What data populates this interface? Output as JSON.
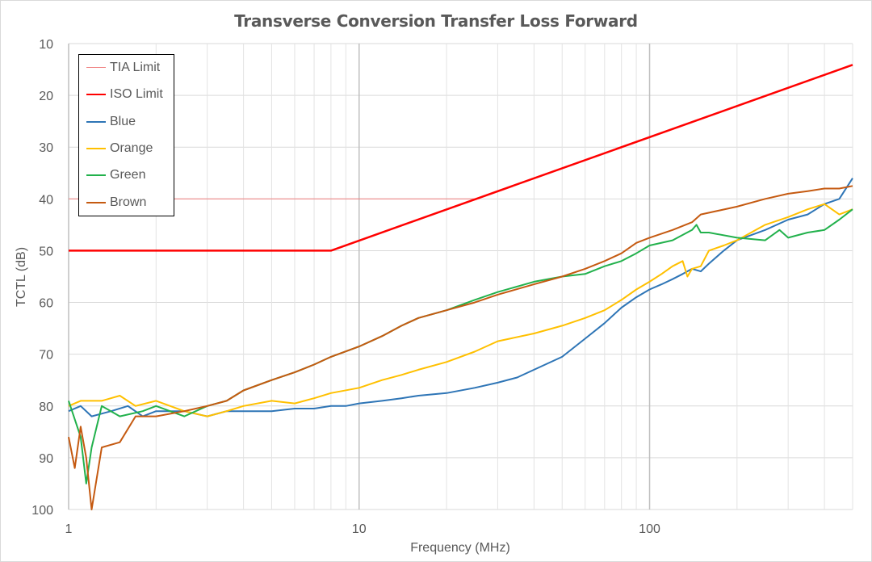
{
  "chart_data": {
    "type": "line",
    "title": "Transverse Conversion Transfer Loss Forward",
    "xlabel": "Frequency (MHz)",
    "ylabel": "TCTL (dB)",
    "xscale": "log",
    "xlim": [
      1,
      500
    ],
    "ylim": [
      10,
      100
    ],
    "y_inverted": true,
    "x_ticks": [
      1,
      10,
      100
    ],
    "x_tick_labels": [
      "1",
      "10",
      "100"
    ],
    "y_ticks": [
      10,
      20,
      30,
      40,
      50,
      60,
      70,
      80,
      90,
      100
    ],
    "y_tick_labels": [
      "10",
      "20",
      "30",
      "40",
      "50",
      "60",
      "70",
      "80",
      "90",
      "100"
    ],
    "grid": true,
    "legend_position": "top-left",
    "series": [
      {
        "name": "TIA Limit",
        "color": "#f08080",
        "width": 1,
        "x": [
          1,
          25
        ],
        "y": [
          40,
          40
        ]
      },
      {
        "name": "ISO Limit",
        "color": "#ff0000",
        "width": 2.5,
        "x": [
          1,
          8,
          500
        ],
        "y": [
          50,
          50,
          14.1
        ]
      },
      {
        "name": "Blue",
        "color": "#2e75b6",
        "width": 2,
        "x": [
          1,
          1.1,
          1.2,
          1.4,
          1.6,
          1.8,
          2,
          2.5,
          3,
          3.5,
          4,
          5,
          6,
          7,
          8,
          9,
          10,
          12,
          14,
          16,
          20,
          25,
          30,
          35,
          40,
          50,
          60,
          70,
          80,
          90,
          100,
          110,
          120,
          130,
          140,
          150,
          160,
          180,
          200,
          250,
          300,
          350,
          400,
          450,
          500
        ],
        "y": [
          81,
          80,
          82,
          81,
          80,
          82,
          81,
          81,
          82,
          81,
          81,
          81,
          80.5,
          80.5,
          80,
          80,
          79.5,
          79,
          78.5,
          78,
          77.5,
          76.5,
          75.5,
          74.5,
          73,
          70.5,
          67,
          64,
          61,
          59,
          57.5,
          56.5,
          55.5,
          54.5,
          53.5,
          54,
          52.5,
          50,
          48,
          46,
          44,
          43,
          41,
          40,
          36
        ]
      },
      {
        "name": "Orange",
        "color": "#ffc000",
        "width": 2,
        "x": [
          1,
          1.1,
          1.3,
          1.5,
          1.7,
          2,
          2.5,
          3,
          3.5,
          4,
          5,
          6,
          7,
          8,
          10,
          12,
          14,
          16,
          20,
          25,
          30,
          40,
          50,
          60,
          70,
          80,
          90,
          100,
          110,
          120,
          130,
          135,
          140,
          150,
          160,
          180,
          200,
          250,
          300,
          350,
          400,
          450,
          500
        ],
        "y": [
          80,
          79,
          79,
          78,
          80,
          79,
          81,
          82,
          81,
          80,
          79,
          79.5,
          78.5,
          77.5,
          76.5,
          75,
          74,
          73,
          71.5,
          69.5,
          67.5,
          66,
          64.5,
          63,
          61.5,
          59.5,
          57.5,
          56,
          54.5,
          53,
          52,
          55,
          53.5,
          53,
          50,
          49,
          48,
          45,
          43.5,
          42,
          41,
          43,
          42
        ]
      },
      {
        "name": "Green",
        "color": "#22b14c",
        "width": 2,
        "x": [
          1,
          1.1,
          1.15,
          1.2,
          1.3,
          1.5,
          1.8,
          2,
          2.5,
          3,
          3.5,
          4,
          5,
          6,
          7,
          8,
          10,
          12,
          14,
          16,
          20,
          25,
          30,
          40,
          50,
          60,
          70,
          80,
          90,
          100,
          120,
          140,
          145,
          150,
          160,
          200,
          250,
          280,
          300,
          350,
          400,
          450,
          500
        ],
        "y": [
          79,
          86,
          95,
          88,
          80,
          82,
          81,
          80,
          82,
          80,
          79,
          77,
          75,
          73.5,
          72,
          70.5,
          68.5,
          66.5,
          64.5,
          63,
          61.5,
          59.5,
          58,
          56,
          55,
          54.5,
          53,
          52,
          50.5,
          49,
          48,
          46,
          45,
          46.5,
          46.5,
          47.5,
          48,
          46,
          47.5,
          46.5,
          46,
          44,
          42
        ]
      },
      {
        "name": "Brown",
        "color": "#c55a11",
        "width": 2,
        "x": [
          1,
          1.05,
          1.1,
          1.15,
          1.2,
          1.3,
          1.5,
          1.7,
          2,
          2.5,
          3,
          3.5,
          4,
          5,
          6,
          7,
          8,
          10,
          12,
          14,
          16,
          20,
          25,
          30,
          40,
          50,
          60,
          70,
          80,
          90,
          100,
          120,
          140,
          150,
          200,
          250,
          300,
          350,
          400,
          450,
          500
        ],
        "y": [
          86,
          92,
          84,
          90,
          100,
          88,
          87,
          82,
          82,
          81,
          80,
          79,
          77,
          75,
          73.5,
          72,
          70.5,
          68.5,
          66.5,
          64.5,
          63,
          61.5,
          60,
          58.5,
          56.5,
          55,
          53.5,
          52,
          50.5,
          48.5,
          47.5,
          46,
          44.5,
          43,
          41.5,
          40,
          39,
          38.5,
          38,
          38,
          37.5
        ]
      }
    ]
  }
}
